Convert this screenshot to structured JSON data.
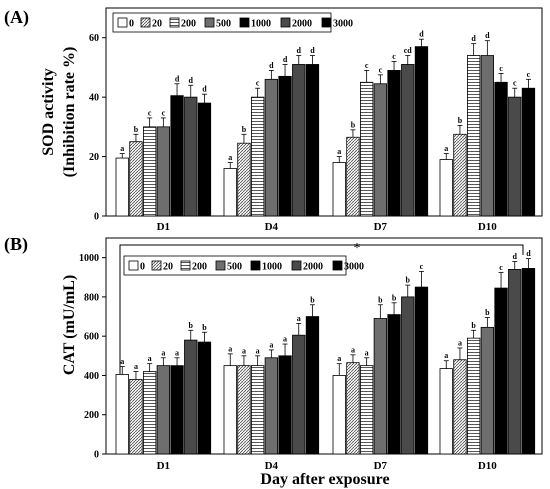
{
  "colors": {
    "bar_edge": "#000000",
    "axis": "#000000",
    "series_fills": [
      "#ffffff",
      "#b8b8b8",
      "#ffffff",
      "#6e6e6e",
      "#000000",
      "#4a4a4a",
      "#000000"
    ],
    "series_patterns": [
      "solid",
      "diag",
      "hlines",
      "solid",
      "solid",
      "solid",
      "solid"
    ]
  },
  "chart_data": [
    {
      "panel_label": "(A)",
      "type": "bar",
      "ylabel": "SOD activity",
      "ylabel2": "(Inhibition rate %)",
      "xlabel": "",
      "ylim": [
        0,
        70
      ],
      "yticks": [
        0,
        20,
        40,
        60
      ],
      "categories": [
        "D1",
        "D4",
        "D7",
        "D10"
      ],
      "legend": {
        "placement": "top-left"
      },
      "series": [
        {
          "name": "0",
          "values": [
            19.5,
            16,
            18,
            19
          ],
          "errors": [
            1.5,
            2,
            2,
            2
          ],
          "letters": [
            "a",
            "a",
            "a",
            "a"
          ]
        },
        {
          "name": "20",
          "values": [
            25,
            24.5,
            26.5,
            27.5
          ],
          "errors": [
            2.5,
            3,
            2.5,
            3
          ],
          "letters": [
            "b",
            "b",
            "b",
            "b"
          ]
        },
        {
          "name": "200",
          "values": [
            30,
            40,
            45,
            54
          ],
          "errors": [
            3,
            3,
            4,
            4
          ],
          "letters": [
            "c",
            "c",
            "c",
            "d"
          ]
        },
        {
          "name": "500",
          "values": [
            30,
            46,
            44.5,
            54
          ],
          "errors": [
            3,
            3,
            3,
            5
          ],
          "letters": [
            "c",
            "d",
            "c",
            "d"
          ]
        },
        {
          "name": "1000",
          "values": [
            40.5,
            47,
            49,
            45
          ],
          "errors": [
            4,
            4,
            3,
            3
          ],
          "letters": [
            "d",
            "d",
            "c",
            "c"
          ]
        },
        {
          "name": "2000",
          "values": [
            40,
            51,
            51,
            40
          ],
          "errors": [
            4,
            3,
            3,
            3
          ],
          "letters": [
            "d",
            "d",
            "cd",
            "c"
          ]
        },
        {
          "name": "3000",
          "values": [
            38,
            51,
            57,
            43
          ],
          "errors": [
            3,
            3,
            2.5,
            3
          ],
          "letters": [
            "d",
            "d",
            "d",
            "c"
          ]
        }
      ]
    },
    {
      "panel_label": "(B)",
      "type": "bar",
      "ylabel": "CAT (mU/mL)",
      "xlabel": "Day after exposure",
      "ylim": [
        0,
        1100
      ],
      "yticks": [
        0,
        200,
        400,
        600,
        800,
        1000
      ],
      "categories": [
        "D1",
        "D4",
        "D7",
        "D10"
      ],
      "legend": {
        "placement": "top-left"
      },
      "annotation": "*",
      "series": [
        {
          "name": "0",
          "values": [
            405,
            450,
            400,
            435
          ],
          "errors": [
            40,
            60,
            60,
            40
          ],
          "letters": [
            "a",
            "a",
            "a",
            "a"
          ]
        },
        {
          "name": "20",
          "values": [
            380,
            450,
            465,
            480
          ],
          "errors": [
            40,
            50,
            40,
            60
          ],
          "letters": [
            "a",
            "a",
            "a",
            "a"
          ]
        },
        {
          "name": "200",
          "values": [
            420,
            450,
            450,
            590
          ],
          "errors": [
            40,
            50,
            40,
            40
          ],
          "letters": [
            "a",
            "a",
            "a",
            "b"
          ]
        },
        {
          "name": "500",
          "values": [
            450,
            490,
            690,
            645
          ],
          "errors": [
            40,
            40,
            70,
            50
          ],
          "letters": [
            "a",
            "a",
            "b",
            "b"
          ]
        },
        {
          "name": "1000",
          "values": [
            450,
            500,
            710,
            845
          ],
          "errors": [
            40,
            60,
            60,
            80
          ],
          "letters": [
            "a",
            "a",
            "b",
            "c"
          ]
        },
        {
          "name": "2000",
          "values": [
            580,
            605,
            800,
            940
          ],
          "errors": [
            50,
            60,
            60,
            40
          ],
          "letters": [
            "b",
            "a",
            "b",
            "d"
          ]
        },
        {
          "name": "3000",
          "values": [
            570,
            700,
            850,
            945
          ],
          "errors": [
            50,
            60,
            80,
            50
          ],
          "letters": [
            "b",
            "b",
            "c",
            "d"
          ]
        }
      ]
    }
  ]
}
